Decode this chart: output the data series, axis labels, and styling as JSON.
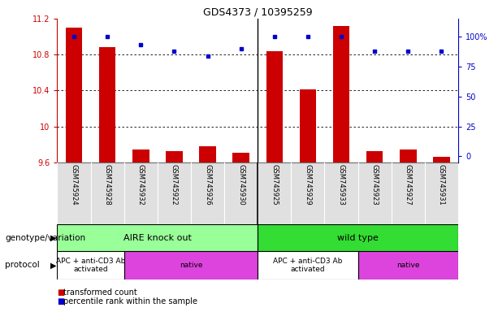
{
  "title": "GDS4373 / 10395259",
  "samples": [
    "GSM745924",
    "GSM745928",
    "GSM745932",
    "GSM745922",
    "GSM745926",
    "GSM745930",
    "GSM745925",
    "GSM745929",
    "GSM745933",
    "GSM745923",
    "GSM745927",
    "GSM745931"
  ],
  "bar_values": [
    11.1,
    10.88,
    9.74,
    9.72,
    9.78,
    9.71,
    10.84,
    10.41,
    11.12,
    9.72,
    9.74,
    9.66
  ],
  "dot_values": [
    100,
    100,
    93,
    88,
    84,
    90,
    100,
    100,
    100,
    88,
    88,
    88
  ],
  "bar_color": "#cc0000",
  "dot_color": "#0000cc",
  "ymin": 9.6,
  "ymax": 11.2,
  "yticks": [
    9.6,
    10.0,
    10.4,
    10.8,
    11.2
  ],
  "ytick_labels": [
    "9.6",
    "10",
    "10.4",
    "10.8",
    "11.2"
  ],
  "right_yticks": [
    0,
    25,
    50,
    75,
    100
  ],
  "right_ytick_labels": [
    "0",
    "25",
    "50",
    "75",
    "100%"
  ],
  "grid_values": [
    10.0,
    10.4,
    10.8
  ],
  "groups": [
    {
      "label": "AIRE knock out",
      "start": 0,
      "end": 6,
      "color": "#99ff99"
    },
    {
      "label": "wild type",
      "start": 6,
      "end": 12,
      "color": "#33dd33"
    }
  ],
  "protocols": [
    {
      "label": "APC + anti-CD3 Ab\nactivated",
      "start": 0,
      "end": 2,
      "color": "#ffffff"
    },
    {
      "label": "native",
      "start": 2,
      "end": 6,
      "color": "#dd44dd"
    },
    {
      "label": "APC + anti-CD3 Ab\nactivated",
      "start": 6,
      "end": 9,
      "color": "#ffffff"
    },
    {
      "label": "native",
      "start": 9,
      "end": 12,
      "color": "#dd44dd"
    }
  ],
  "legend_red_label": "transformed count",
  "legend_blue_label": "percentile rank within the sample",
  "genotype_label": "genotype/variation",
  "protocol_label": "protocol"
}
